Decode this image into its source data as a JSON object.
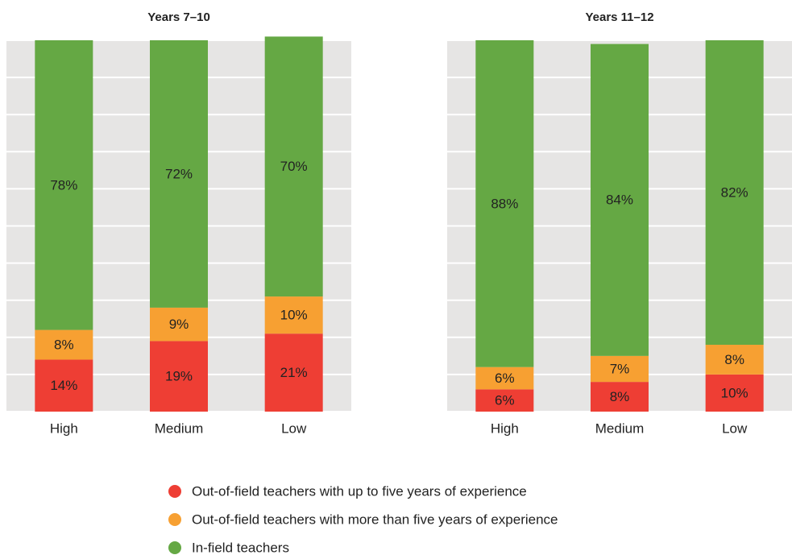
{
  "chart_data": [
    {
      "type": "stacked_bar",
      "title": "Years 7–10",
      "categories": [
        "High",
        "Medium",
        "Low"
      ],
      "series": [
        {
          "name": "Out-of-field teachers with up to five years of experience",
          "color": "#ee3e34",
          "values": [
            14,
            19,
            21
          ],
          "value_labels": [
            "14%",
            "19%",
            "21%"
          ]
        },
        {
          "name": "Out-of-field teachers with more than five years of experience",
          "color": "#f7a032",
          "values": [
            8,
            9,
            10
          ],
          "value_labels": [
            "8%",
            "9%",
            "10%"
          ]
        },
        {
          "name": "In-field teachers",
          "color": "#65a844",
          "values": [
            78,
            72,
            70
          ],
          "value_labels": [
            "78%",
            "72%",
            "70%"
          ]
        }
      ],
      "ylim": [
        0,
        100
      ],
      "yticks": [
        0,
        10,
        20,
        30,
        40,
        50,
        60,
        70,
        80,
        90,
        100
      ],
      "grid": true
    },
    {
      "type": "stacked_bar",
      "title": "Years 11–12",
      "categories": [
        "High",
        "Medium",
        "Low"
      ],
      "series": [
        {
          "values": [
            6,
            8,
            10
          ],
          "value_labels": [
            "6%",
            "8%",
            "10%"
          ]
        },
        {
          "values": [
            6,
            7,
            8
          ],
          "value_labels": [
            "6%",
            "7%",
            "8%"
          ]
        },
        {
          "values": [
            88,
            84,
            82
          ],
          "value_labels": [
            "88%",
            "84%",
            "82%"
          ]
        }
      ],
      "ylim": [
        0,
        100
      ],
      "yticks": [
        0,
        10,
        20,
        30,
        40,
        50,
        60,
        70,
        80,
        90,
        100
      ],
      "grid": true
    }
  ]
}
